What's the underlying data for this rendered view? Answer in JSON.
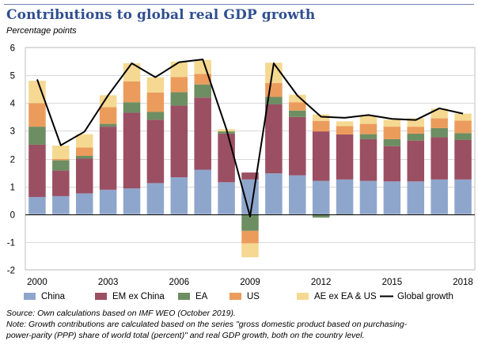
{
  "header": {
    "title": "Contributions to global real GDP growth",
    "unit_label": "Percentage points"
  },
  "colors": {
    "title": "#2f4f8f",
    "rule": "#6f86b3",
    "China": "#8fa6cc",
    "EM ex China": "#9b4f63",
    "EA": "#6d8e63",
    "US": "#eb9c5c",
    "AE ex EA & US": "#f5d992",
    "Global growth": "#000000"
  },
  "chart_data": {
    "type": "bar",
    "stacked": true,
    "title": "Contributions to global real GDP growth",
    "ylabel": "Percentage points",
    "xlabel": "",
    "ylim": [
      -2,
      6
    ],
    "yticks": [
      -2,
      -1,
      0,
      1,
      2,
      3,
      4,
      5,
      6
    ],
    "ytick_labels": [
      "-2",
      "-1",
      "0",
      "1",
      "2",
      "3",
      "4",
      "5",
      "6"
    ],
    "gridlines": true,
    "legend_position": "bottom",
    "categories": [
      "2000",
      "2001",
      "2002",
      "2003",
      "2004",
      "2005",
      "2006",
      "2007",
      "2008",
      "2009",
      "2010",
      "2011",
      "2012",
      "2013",
      "2014",
      "2015",
      "2016",
      "2017",
      "2018"
    ],
    "xtick_labels": [
      {
        "index": 0,
        "label": "2000"
      },
      {
        "index": 3,
        "label": "2003"
      },
      {
        "index": 6,
        "label": "2006"
      },
      {
        "index": 9,
        "label": "2009"
      },
      {
        "index": 12,
        "label": "2012"
      },
      {
        "index": 15,
        "label": "2015"
      },
      {
        "index": 18,
        "label": "2018"
      }
    ],
    "series": [
      {
        "name": "China",
        "values": [
          0.62,
          0.65,
          0.75,
          0.88,
          0.93,
          1.12,
          1.33,
          1.6,
          1.15,
          1.25,
          1.47,
          1.4,
          1.2,
          1.25,
          1.2,
          1.18,
          1.18,
          1.25,
          1.25
        ]
      },
      {
        "name": "EM ex China",
        "values": [
          1.88,
          0.92,
          1.25,
          2.27,
          2.72,
          2.28,
          2.58,
          2.6,
          1.75,
          0.25,
          2.48,
          2.1,
          1.78,
          1.62,
          1.5,
          1.27,
          1.47,
          1.52,
          1.42
        ]
      },
      {
        "name": "EA",
        "values": [
          0.65,
          0.37,
          0.1,
          0.1,
          0.38,
          0.28,
          0.48,
          0.47,
          0.08,
          -0.6,
          0.27,
          0.23,
          -0.12,
          -0.03,
          0.18,
          0.25,
          0.25,
          0.33,
          0.25
        ]
      },
      {
        "name": "US",
        "values": [
          0.85,
          0.05,
          0.3,
          0.6,
          0.75,
          0.7,
          0.55,
          0.38,
          0.0,
          -0.45,
          0.5,
          0.3,
          0.38,
          0.3,
          0.37,
          0.45,
          0.25,
          0.35,
          0.45
        ]
      },
      {
        "name": "AE ex EA & US",
        "values": [
          0.8,
          0.48,
          0.48,
          0.43,
          0.65,
          0.55,
          0.55,
          0.5,
          0.08,
          -0.5,
          0.73,
          0.27,
          0.23,
          0.17,
          0.3,
          0.25,
          0.3,
          0.35,
          0.25
        ]
      }
    ],
    "line": {
      "name": "Global growth",
      "values": [
        4.85,
        2.48,
        2.97,
        4.28,
        5.43,
        4.93,
        5.47,
        5.57,
        3.06,
        -0.08,
        5.43,
        4.27,
        3.51,
        3.47,
        3.57,
        3.43,
        3.39,
        3.81,
        3.62
      ]
    }
  },
  "legend": [
    {
      "label": "China",
      "kind": "box",
      "color": "#8fa6cc"
    },
    {
      "label": "EM ex China",
      "kind": "box",
      "color": "#9b4f63"
    },
    {
      "label": "EA",
      "kind": "box",
      "color": "#6d8e63"
    },
    {
      "label": "US",
      "kind": "box",
      "color": "#eb9c5c"
    },
    {
      "label": "AE ex EA & US",
      "kind": "box",
      "color": "#f5d992"
    },
    {
      "label": "Global growth",
      "kind": "line",
      "color": "#000000"
    }
  ],
  "footer": {
    "source": "Source: Own calculations based on IMF WEO (October 2019).",
    "note_line1": "Note: Growth contributions are calculated based on the series \"gross domestic product based on purchasing-",
    "note_line2": "power-parity (PPP) share of world total (percent)\" and real GDP growth, both on the country level."
  }
}
